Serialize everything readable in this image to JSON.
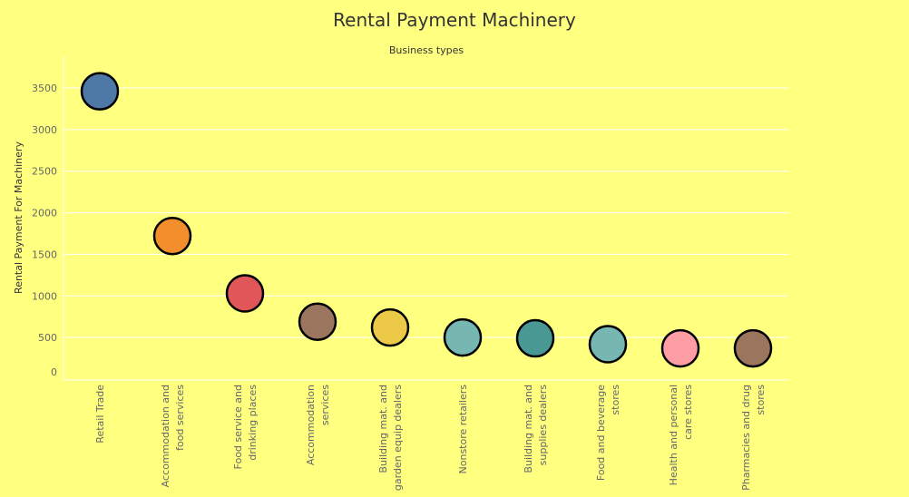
{
  "chart_data": {
    "type": "scatter",
    "title": "Rental Payment Machinery",
    "subtitle": "Business types",
    "xlabel": "",
    "ylabel": "Rental Payment For Machinery",
    "ylim": [
      0,
      3800
    ],
    "yticks": [
      0,
      500,
      1000,
      1500,
      2000,
      2500,
      3000,
      3500
    ],
    "grid": true,
    "categories": [
      "Retail Trade",
      "Accommodation and food services",
      "Food service and drinking places",
      "Accommodation services",
      "Building mat. and garden equip dealers",
      "Nonstore retailers",
      "Building mat. and supplies dealers",
      "Food and beverage stores",
      "Health and personal care stores",
      "Pharmacies and drug stores"
    ],
    "category_lines": [
      [
        "Retail Trade"
      ],
      [
        "Accommodation and",
        "food services"
      ],
      [
        "Food service and",
        "drinking places"
      ],
      [
        "Accommodation",
        "services"
      ],
      [
        "Building mat. and",
        "garden equip dealers"
      ],
      [
        "Nonstore retailers"
      ],
      [
        "Building mat. and",
        "supplies dealers"
      ],
      [
        "Food and beverage",
        "stores"
      ],
      [
        "Health and personal",
        "care stores"
      ],
      [
        "Pharmacies and drug",
        "stores"
      ]
    ],
    "values": [
      3460,
      1720,
      1030,
      690,
      620,
      500,
      490,
      420,
      370,
      370
    ],
    "colors": [
      "#4e79a7",
      "#f28e2b",
      "#e15759",
      "#9c755f",
      "#edc948",
      "#76b7b2",
      "#499894",
      "#76b7b2",
      "#ff9da7",
      "#9c755f"
    ]
  },
  "colors": {
    "background": "#ffff80",
    "grid": "#ffffff",
    "marker_stroke": "#000000"
  }
}
